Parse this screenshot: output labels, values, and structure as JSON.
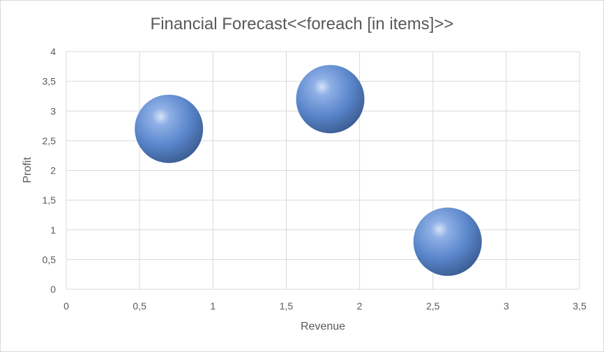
{
  "chart_data": {
    "type": "bubble",
    "title": "Financial Forecast<<foreach [in items]>>",
    "xlabel": "Revenue",
    "ylabel": "Profit",
    "xlim": [
      0,
      3.5
    ],
    "ylim": [
      0,
      4
    ],
    "xticks": [
      "0",
      "0,5",
      "1",
      "1,5",
      "2",
      "2,5",
      "3",
      "3,5"
    ],
    "yticks": [
      "0",
      "0,5",
      "1",
      "1,5",
      "2",
      "2,5",
      "3",
      "3,5",
      "4"
    ],
    "grid": true,
    "legend": "none",
    "series": [
      {
        "color": "#5b87cc",
        "points": [
          {
            "x": 0.7,
            "y": 2.7,
            "size": 1
          },
          {
            "x": 1.8,
            "y": 3.2,
            "size": 1
          },
          {
            "x": 2.6,
            "y": 0.8,
            "size": 1
          }
        ]
      }
    ]
  }
}
